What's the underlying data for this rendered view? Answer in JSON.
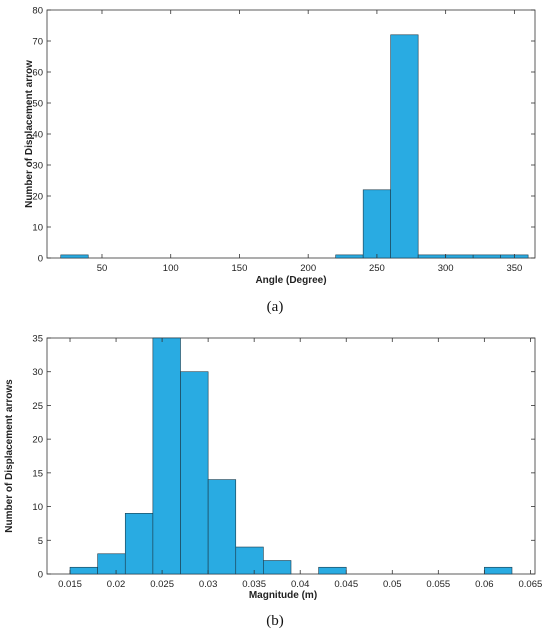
{
  "chart_data": [
    {
      "type": "bar",
      "subfigure_label": "(a)",
      "xlabel": "Angle (Degree)",
      "ylabel": "Number of Displacement arrow",
      "xlim": [
        10,
        365
      ],
      "ylim": [
        0,
        80
      ],
      "x_ticks": [
        50,
        100,
        150,
        200,
        250,
        300,
        350
      ],
      "y_ticks": [
        0,
        10,
        20,
        30,
        40,
        50,
        60,
        70,
        80
      ],
      "bar_color": "#29ABE2",
      "bins": [
        {
          "x0": 20,
          "x1": 40,
          "value": 1
        },
        {
          "x0": 220,
          "x1": 240,
          "value": 1
        },
        {
          "x0": 240,
          "x1": 260,
          "value": 22
        },
        {
          "x0": 260,
          "x1": 280,
          "value": 72
        },
        {
          "x0": 280,
          "x1": 300,
          "value": 1
        },
        {
          "x0": 300,
          "x1": 320,
          "value": 1
        },
        {
          "x0": 320,
          "x1": 340,
          "value": 1
        },
        {
          "x0": 340,
          "x1": 360,
          "value": 1
        }
      ]
    },
    {
      "type": "bar",
      "subfigure_label": "(b)",
      "xlabel": "Magnitude (m)",
      "ylabel": "Number of Displacement arrows",
      "xlim": [
        0.0125,
        0.0655
      ],
      "ylim": [
        0,
        35
      ],
      "x_ticks": [
        0.015,
        0.02,
        0.025,
        0.03,
        0.035,
        0.04,
        0.045,
        0.05,
        0.055,
        0.06,
        0.065
      ],
      "y_ticks": [
        0,
        5,
        10,
        15,
        20,
        25,
        30,
        35
      ],
      "bar_color": "#29ABE2",
      "bins": [
        {
          "x0": 0.015,
          "x1": 0.018,
          "value": 1
        },
        {
          "x0": 0.018,
          "x1": 0.021,
          "value": 3
        },
        {
          "x0": 0.021,
          "x1": 0.024,
          "value": 9
        },
        {
          "x0": 0.024,
          "x1": 0.027,
          "value": 35
        },
        {
          "x0": 0.027,
          "x1": 0.03,
          "value": 30
        },
        {
          "x0": 0.03,
          "x1": 0.033,
          "value": 14
        },
        {
          "x0": 0.033,
          "x1": 0.036,
          "value": 4
        },
        {
          "x0": 0.036,
          "x1": 0.039,
          "value": 2
        },
        {
          "x0": 0.042,
          "x1": 0.045,
          "value": 1
        },
        {
          "x0": 0.06,
          "x1": 0.063,
          "value": 1
        }
      ]
    }
  ]
}
